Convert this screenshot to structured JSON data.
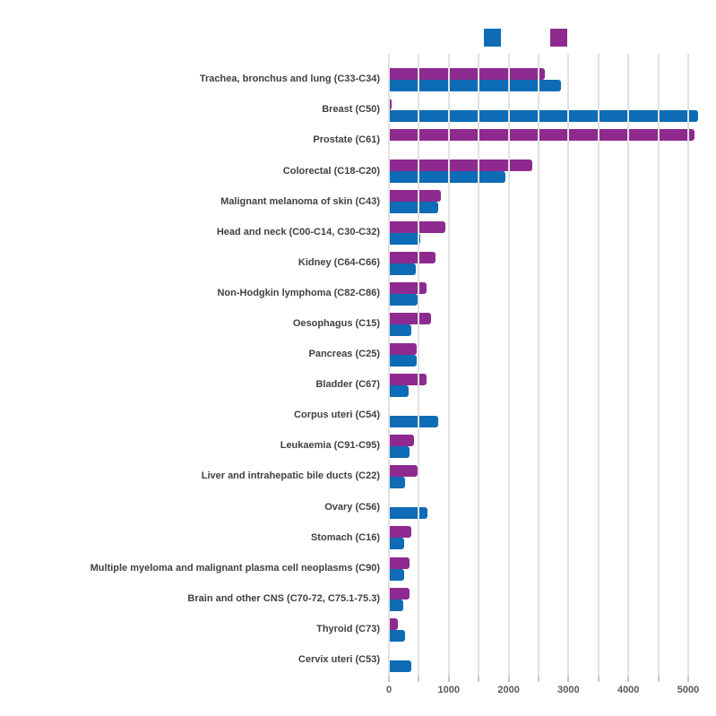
{
  "colors": {
    "series_blue": "#0d6cb5",
    "series_purple": "#8e2a8f",
    "gridline": "#e2e2e2",
    "tick": "#c8c8c8",
    "category_label": "#414042",
    "tick_label": "#58595b",
    "background": "#ffffff"
  },
  "legend": {
    "items": [
      {
        "label": "",
        "color": "#0d6cb5",
        "swatch": "blue"
      },
      {
        "label": "",
        "color": "#8e2a8f",
        "swatch": "purple"
      }
    ]
  },
  "chart_data": {
    "type": "bar",
    "orientation": "horizontal",
    "title": "",
    "xlabel": "",
    "ylabel": "",
    "xlim": [
      0,
      5000
    ],
    "grid": "vertical",
    "legend_position": "top-center",
    "x_tick_labels": [
      "0",
      "1000",
      "2000",
      "3000",
      "4000",
      "5000"
    ],
    "x_minor_tick_interval": 500,
    "categories": [
      "Trachea, bronchus and lung (C33-C34)",
      "Breast (C50)",
      "Prostate (C61)",
      "Colorectal (C18-C20)",
      "Malignant melanoma of skin (C43)",
      "Head and neck (C00-C14, C30-C32)",
      "Kidney (C64-C66)",
      "Non-Hodgkin lymphoma (C82-C86)",
      "Oesophagus (C15)",
      "Pancreas (C25)",
      "Bladder (C67)",
      "Corpus uteri (C54)",
      "Leukaemia (C91-C95)",
      "Liver and intrahepatic bile ducts (C22)",
      "Ovary (C56)",
      "Stomach (C16)",
      "Multiple myeloma and malignant plasma cell neoplasms (C90)",
      "Brain and other CNS (C70-72, C75.1-75.3)",
      "Thyroid (C73)",
      "Cervix uteri (C53)"
    ],
    "series": [
      {
        "name": "",
        "color": "#8e2a8f",
        "row_position": "top",
        "values": [
          2600,
          50,
          5100,
          2400,
          870,
          950,
          775,
          625,
          710,
          470,
          625,
          null,
          425,
          475,
          null,
          375,
          350,
          350,
          150,
          null
        ]
      },
      {
        "name": "",
        "color": "#0d6cb5",
        "row_position": "bottom",
        "values": [
          2870,
          5170,
          null,
          1950,
          830,
          525,
          450,
          475,
          375,
          465,
          325,
          825,
          350,
          275,
          650,
          250,
          250,
          240,
          275,
          375
        ]
      }
    ]
  }
}
